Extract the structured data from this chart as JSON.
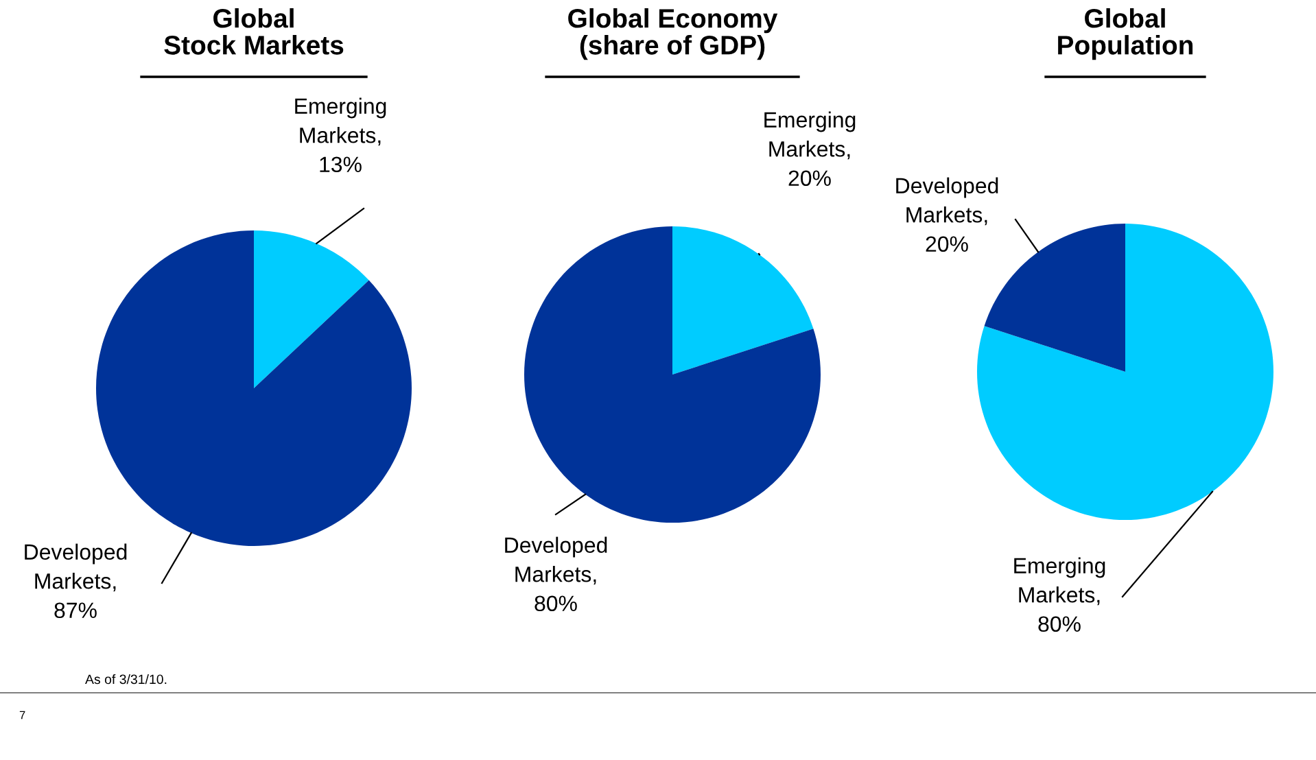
{
  "chart_data": [
    {
      "type": "pie",
      "title": "Global\nStock Markets",
      "categories": [
        "Emerging Markets",
        "Developed Markets"
      ],
      "values": [
        13,
        87
      ],
      "colors": [
        "#00ccff",
        "#003399"
      ],
      "value_labels": [
        ", 13%",
        ", 87%"
      ],
      "annotations": [
        "As of 3/31/10.",
        "7"
      ]
    },
    {
      "type": "pie",
      "title": "Global Economy\n(share of GDP)",
      "categories": [
        "Emerging Markets",
        "Developed Markets"
      ],
      "values": [
        20,
        80
      ],
      "colors": [
        "#00ccff",
        "#003399"
      ],
      "value_labels": [
        ", 20%",
        ", 80%"
      ]
    },
    {
      "type": "pie",
      "title": "Global\nPopulation",
      "categories": [
        "Emerging Markets",
        "Developed Markets"
      ],
      "values": [
        80,
        20
      ],
      "colors": [
        "#00ccff",
        "#003399"
      ],
      "value_labels": [
        ", 80%",
        ", 20%"
      ]
    }
  ]
}
